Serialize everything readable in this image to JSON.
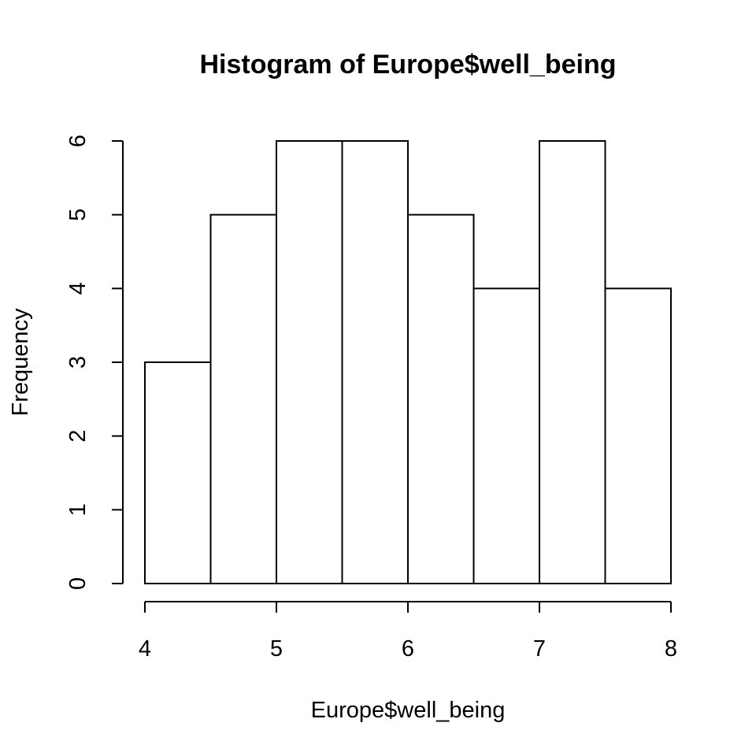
{
  "chart_data": {
    "type": "bar",
    "title": "Histogram of Europe$well_being",
    "xlabel": "Europe$well_being",
    "ylabel": "Frequency",
    "bins": [
      {
        "start": 4.0,
        "end": 4.5,
        "count": 3
      },
      {
        "start": 4.5,
        "end": 5.0,
        "count": 5
      },
      {
        "start": 5.0,
        "end": 5.5,
        "count": 6
      },
      {
        "start": 5.5,
        "end": 6.0,
        "count": 6
      },
      {
        "start": 6.0,
        "end": 6.5,
        "count": 5
      },
      {
        "start": 6.5,
        "end": 7.0,
        "count": 4
      },
      {
        "start": 7.0,
        "end": 7.5,
        "count": 6
      },
      {
        "start": 7.5,
        "end": 8.0,
        "count": 4
      }
    ],
    "xlim": [
      4,
      8
    ],
    "ylim": [
      0,
      6
    ],
    "x_ticks": [
      "4",
      "5",
      "6",
      "7",
      "8"
    ],
    "y_ticks": [
      "0",
      "1",
      "2",
      "3",
      "4",
      "5",
      "6"
    ],
    "grid": false,
    "bar_fill": "#ffffff",
    "bar_stroke": "#000000"
  }
}
